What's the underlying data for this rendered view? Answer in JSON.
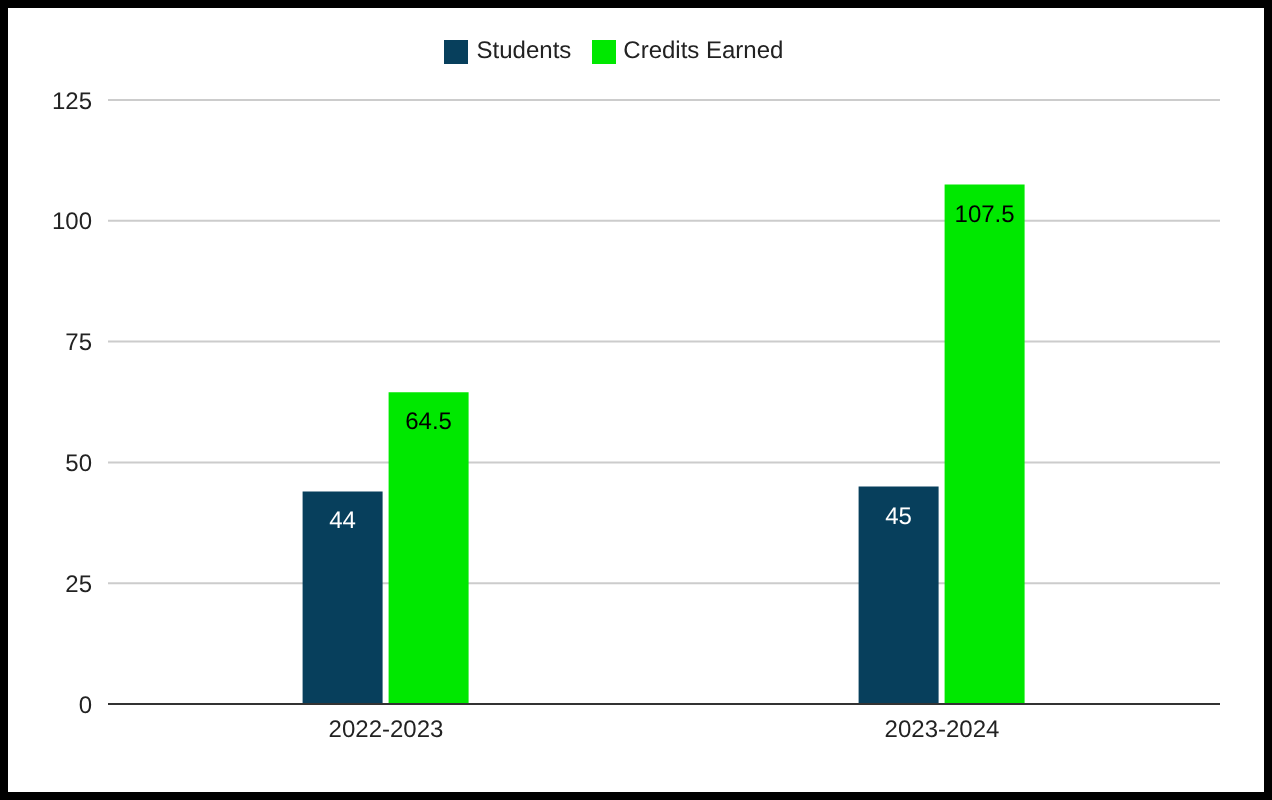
{
  "chart_data": {
    "type": "bar",
    "categories": [
      "2022-2023",
      "2023-2024"
    ],
    "series": [
      {
        "name": "Students",
        "color": "#073f5c",
        "values": [
          44,
          45
        ]
      },
      {
        "name": "Credits Earned",
        "color": "#00e800",
        "values": [
          64.5,
          107.5
        ]
      }
    ],
    "ylim": [
      0,
      125
    ],
    "yticks": [
      0,
      25,
      50,
      75,
      100,
      125
    ],
    "grid": "y",
    "legend": "top",
    "data_labels": true
  }
}
